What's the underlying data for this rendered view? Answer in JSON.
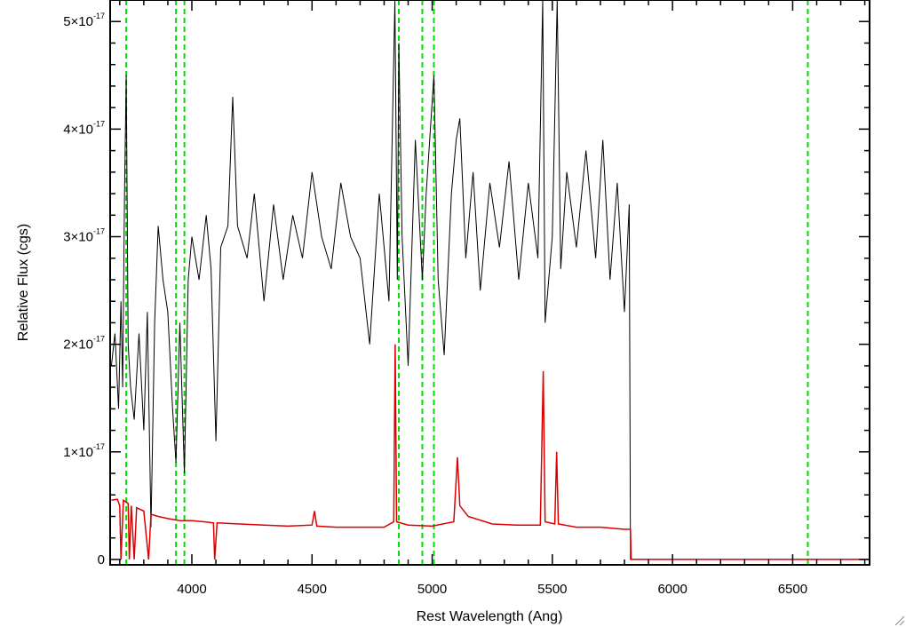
{
  "chart_data": {
    "type": "line",
    "title": "",
    "xlabel": "Rest Wavelength (Ang)",
    "ylabel": "Relative Flux (cgs)",
    "xlim": [
      3660,
      6820
    ],
    "ylim": [
      -5e-19,
      5.2e-17
    ],
    "x_ticks": [
      4000,
      4500,
      5000,
      5500,
      6000,
      6500
    ],
    "x_tick_labels": [
      "4000",
      "4500",
      "5000",
      "5500",
      "6000",
      "6500"
    ],
    "y_ticks": [
      0,
      1e-17,
      2e-17,
      3e-17,
      4e-17,
      5e-17
    ],
    "y_tick_labels": [
      {
        "mantissa": "0",
        "exp": ""
      },
      {
        "mantissa": "1×10",
        "exp": "-17"
      },
      {
        "mantissa": "2×10",
        "exp": "-17"
      },
      {
        "mantissa": "3×10",
        "exp": "-17"
      },
      {
        "mantissa": "4×10",
        "exp": "-17"
      },
      {
        "mantissa": "5×10",
        "exp": "-17"
      }
    ],
    "grid": false,
    "vertical_markers": {
      "color": "#00dd00",
      "style": "dashed",
      "x": [
        3727,
        3934,
        3969,
        4861,
        4959,
        5007,
        6563
      ]
    },
    "series": [
      {
        "color": "#000000",
        "points": [
          [
            3665,
            1.8e-17
          ],
          [
            3680,
            2.1e-17
          ],
          [
            3695,
            1.4e-17
          ],
          [
            3705,
            2.4e-17
          ],
          [
            3712,
            1.6e-17
          ],
          [
            3720,
            3.4e-17
          ],
          [
            3727,
            4.5e-17
          ],
          [
            3735,
            2e-17
          ],
          [
            3745,
            1.6e-17
          ],
          [
            3760,
            1.3e-17
          ],
          [
            3780,
            2.1e-17
          ],
          [
            3800,
            1.2e-17
          ],
          [
            3815,
            2.3e-17
          ],
          [
            3830,
            3e-18
          ],
          [
            3845,
            2.2e-17
          ],
          [
            3860,
            3.1e-17
          ],
          [
            3880,
            2.6e-17
          ],
          [
            3900,
            2.3e-17
          ],
          [
            3920,
            1.4e-17
          ],
          [
            3934,
            9e-18
          ],
          [
            3950,
            2.2e-17
          ],
          [
            3969,
            8e-18
          ],
          [
            3985,
            2.6e-17
          ],
          [
            4000,
            3e-17
          ],
          [
            4030,
            2.6e-17
          ],
          [
            4060,
            3.2e-17
          ],
          [
            4080,
            2.7e-17
          ],
          [
            4100,
            1.1e-17
          ],
          [
            4120,
            2.9e-17
          ],
          [
            4150,
            3.1e-17
          ],
          [
            4170,
            4.3e-17
          ],
          [
            4190,
            3.1e-17
          ],
          [
            4230,
            2.8e-17
          ],
          [
            4260,
            3.4e-17
          ],
          [
            4300,
            2.4e-17
          ],
          [
            4340,
            3.3e-17
          ],
          [
            4380,
            2.6e-17
          ],
          [
            4420,
            3.2e-17
          ],
          [
            4460,
            2.8e-17
          ],
          [
            4500,
            3.6e-17
          ],
          [
            4540,
            3e-17
          ],
          [
            4580,
            2.7e-17
          ],
          [
            4620,
            3.5e-17
          ],
          [
            4660,
            3e-17
          ],
          [
            4700,
            2.8e-17
          ],
          [
            4740,
            2e-17
          ],
          [
            4780,
            3.4e-17
          ],
          [
            4820,
            2.4e-17
          ],
          [
            4845,
            5.3e-17
          ],
          [
            4855,
            2.6e-17
          ],
          [
            4861,
            4.8e-17
          ],
          [
            4875,
            3e-17
          ],
          [
            4900,
            1.8e-17
          ],
          [
            4930,
            3.9e-17
          ],
          [
            4959,
            2.6e-17
          ],
          [
            4975,
            3.4e-17
          ],
          [
            5007,
            4.5e-17
          ],
          [
            5025,
            2.6e-17
          ],
          [
            5050,
            1.9e-17
          ],
          [
            5080,
            3.4e-17
          ],
          [
            5100,
            3.9e-17
          ],
          [
            5115,
            4.1e-17
          ],
          [
            5140,
            2.8e-17
          ],
          [
            5170,
            3.6e-17
          ],
          [
            5200,
            2.5e-17
          ],
          [
            5240,
            3.5e-17
          ],
          [
            5280,
            2.9e-17
          ],
          [
            5320,
            3.7e-17
          ],
          [
            5360,
            2.6e-17
          ],
          [
            5400,
            3.5e-17
          ],
          [
            5440,
            2.8e-17
          ],
          [
            5460,
            5.3e-17
          ],
          [
            5470,
            2.2e-17
          ],
          [
            5500,
            3e-17
          ],
          [
            5520,
            5.3e-17
          ],
          [
            5535,
            2.7e-17
          ],
          [
            5560,
            3.6e-17
          ],
          [
            5600,
            2.9e-17
          ],
          [
            5640,
            3.8e-17
          ],
          [
            5680,
            2.8e-17
          ],
          [
            5710,
            3.9e-17
          ],
          [
            5740,
            2.6e-17
          ],
          [
            5770,
            3.5e-17
          ],
          [
            5800,
            2.3e-17
          ],
          [
            5820,
            3.3e-17
          ],
          [
            5825,
            0.0
          ],
          [
            6820,
            0.0
          ]
        ]
      },
      {
        "color": "#dd0000",
        "points": [
          [
            3665,
            5.5e-18
          ],
          [
            3690,
            5.6e-18
          ],
          [
            3700,
            5e-18
          ],
          [
            3705,
            0.0
          ],
          [
            3715,
            5.5e-18
          ],
          [
            3735,
            5.2e-18
          ],
          [
            3740,
            0.0
          ],
          [
            3748,
            5e-18
          ],
          [
            3760,
            0.0
          ],
          [
            3770,
            4.8e-18
          ],
          [
            3800,
            4.5e-18
          ],
          [
            3820,
            0.0
          ],
          [
            3830,
            4.2e-18
          ],
          [
            3860,
            4e-18
          ],
          [
            3900,
            3.8e-18
          ],
          [
            3950,
            3.6e-18
          ],
          [
            4000,
            3.6e-18
          ],
          [
            4050,
            3.5e-18
          ],
          [
            4090,
            3.4e-18
          ],
          [
            4095,
            0.0
          ],
          [
            4105,
            3.4e-18
          ],
          [
            4200,
            3.3e-18
          ],
          [
            4300,
            3.2e-18
          ],
          [
            4400,
            3.1e-18
          ],
          [
            4500,
            3.2e-18
          ],
          [
            4510,
            4.5e-18
          ],
          [
            4520,
            3.1e-18
          ],
          [
            4600,
            3e-18
          ],
          [
            4700,
            3e-18
          ],
          [
            4800,
            3e-18
          ],
          [
            4840,
            3.5e-18
          ],
          [
            4846,
            2e-17
          ],
          [
            4852,
            3.5e-18
          ],
          [
            4900,
            3.2e-18
          ],
          [
            5000,
            3.1e-18
          ],
          [
            5090,
            3.5e-18
          ],
          [
            5105,
            9.5e-18
          ],
          [
            5115,
            5e-18
          ],
          [
            5150,
            4e-18
          ],
          [
            5250,
            3.3e-18
          ],
          [
            5350,
            3.2e-18
          ],
          [
            5450,
            3.2e-18
          ],
          [
            5462,
            1.75e-17
          ],
          [
            5470,
            3.5e-18
          ],
          [
            5510,
            3.3e-18
          ],
          [
            5518,
            1e-17
          ],
          [
            5525,
            3.3e-18
          ],
          [
            5600,
            3e-18
          ],
          [
            5700,
            3e-18
          ],
          [
            5800,
            2.8e-18
          ],
          [
            5825,
            2.8e-18
          ],
          [
            5828,
            0.0
          ],
          [
            6820,
            0.0
          ]
        ]
      }
    ]
  }
}
